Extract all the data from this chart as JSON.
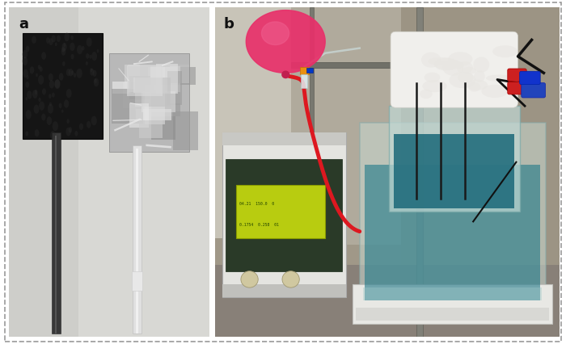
{
  "figure_width": 7.0,
  "figure_height": 4.26,
  "dpi": 100,
  "background_color": "#ffffff",
  "panel_a_label": "a",
  "panel_b_label": "b",
  "label_fontsize": 13,
  "label_fontweight": "bold",
  "label_color": "#111111",
  "panel_a_bg": "#d4d4ce",
  "panel_b_bg_top": "#9a9888",
  "panel_b_bg_bot": "#787060"
}
